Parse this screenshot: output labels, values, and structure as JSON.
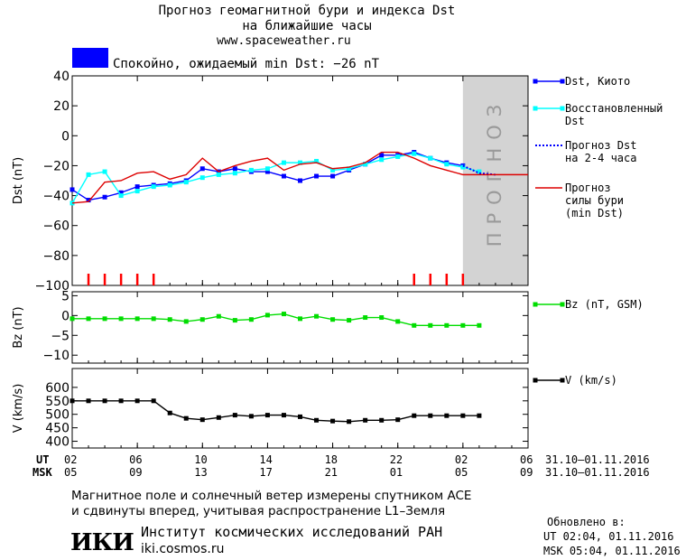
{
  "header": {
    "title_line1": "Прогноз геомагнитной бури и индекса Dst",
    "title_line2": "на ближайшие часы",
    "website": "www.spaceweather.ru",
    "status_text": "Спокойно, ожидаемый min Dst: −26 nT",
    "status_color": "#0000ff"
  },
  "time_axis": {
    "ut_label": "UT",
    "msk_label": "MSK",
    "ut_ticks": [
      "02",
      "06",
      "10",
      "14",
      "18",
      "22",
      "02",
      "06"
    ],
    "msk_ticks": [
      "05",
      "09",
      "13",
      "17",
      "21",
      "01",
      "05",
      "09"
    ],
    "ut_range": "31.10–01.11.2016",
    "msk_range": "31.10–01.11.2016"
  },
  "footer": {
    "note_line1": "Магнитное поле и солнечный ветер измерены спутником ACE",
    "note_line2": "и сдвинуты вперед, учитывая распространение L1–Земля",
    "updated_label": "Обновлено в:",
    "updated_ut": "UT  02:04, 01.11.2016",
    "updated_msk": "MSK 05:04, 01.11.2016",
    "org_logo": "ИКИ",
    "org_name": "Институт космических исследований РАН",
    "org_site": "iki.cosmos.ru"
  },
  "chart_data": [
    {
      "type": "line",
      "panel": "dst",
      "ylabel": "Dst (nT)",
      "xlim": [
        2,
        30
      ],
      "ylim": [
        -100,
        40
      ],
      "yticks": [
        40,
        20,
        0,
        -20,
        -40,
        -60,
        -80,
        -100
      ],
      "forecast_region": {
        "x_start": 26,
        "x_end": 30,
        "label": "ПРОГНОЗ",
        "color": "#d3d3d3"
      },
      "series": [
        {
          "name": "Dst, Киото",
          "color": "#0000ff",
          "marker": "square",
          "x": [
            2,
            3,
            4,
            5,
            6,
            7,
            8,
            9,
            10,
            11,
            12,
            13,
            14,
            15,
            16,
            17,
            18,
            19,
            20,
            21,
            22,
            23,
            24,
            25,
            26
          ],
          "y": [
            -36,
            -43,
            -41,
            -38,
            -34,
            -33,
            -32,
            -30,
            -22,
            -24,
            -22,
            -24,
            -24,
            -27,
            -30,
            -27,
            -27,
            -23,
            -19,
            -13,
            -13,
            -11,
            -15,
            -18,
            -20
          ]
        },
        {
          "name": "Восстановленный Dst",
          "color": "#00ffff",
          "marker": "square",
          "x": [
            2,
            3,
            4,
            5,
            6,
            7,
            8,
            9,
            10,
            11,
            12,
            13,
            14,
            15,
            16,
            17,
            18,
            19,
            20,
            21,
            22,
            23,
            24,
            25,
            26,
            27
          ],
          "y": [
            -45,
            -26,
            -24,
            -40,
            -37,
            -34,
            -33,
            -31,
            -28,
            -26,
            -25,
            -23,
            -22,
            -18,
            -18,
            -17,
            -23,
            -22,
            -19,
            -16,
            -14,
            -12,
            -15,
            -19,
            -21,
            -24
          ]
        },
        {
          "name": "Прогноз Dst на 2-4 часа",
          "color": "#0000ff",
          "line_style": "dotted",
          "x": [
            26,
            27,
            28
          ],
          "y": [
            -20,
            -25,
            -26
          ]
        },
        {
          "name": "Прогноз силы бури (min Dst)",
          "color": "#dd0000",
          "x": [
            2,
            3,
            4,
            5,
            6,
            7,
            8,
            9,
            10,
            11,
            12,
            13,
            14,
            15,
            16,
            17,
            18,
            19,
            20,
            21,
            22,
            23,
            24,
            25,
            26,
            27,
            28,
            29,
            30
          ],
          "y": [
            -45,
            -44,
            -31,
            -30,
            -25,
            -24,
            -29,
            -26,
            -15,
            -24,
            -20,
            -17,
            -15,
            -23,
            -19,
            -18,
            -22,
            -21,
            -18,
            -11,
            -11,
            -15,
            -20,
            -23,
            -26,
            -26,
            -26,
            -26,
            -26
          ]
        }
      ],
      "storm_markers": {
        "color": "#ff0000",
        "x": [
          3,
          4,
          5,
          6,
          7,
          23,
          24,
          25,
          26
        ]
      }
    },
    {
      "type": "line",
      "panel": "bz",
      "ylabel": "Bz (nT)",
      "xlim": [
        2,
        30
      ],
      "ylim": [
        -12,
        6
      ],
      "yticks": [
        5,
        0,
        -5,
        -10
      ],
      "series": [
        {
          "name": "Bz (nT, GSM)",
          "color": "#00dd00",
          "marker": "square",
          "x": [
            2,
            3,
            4,
            5,
            6,
            7,
            8,
            9,
            10,
            11,
            12,
            13,
            14,
            15,
            16,
            17,
            18,
            19,
            20,
            21,
            22,
            23,
            24,
            25,
            26,
            27
          ],
          "y": [
            -0.8,
            -0.8,
            -0.8,
            -0.8,
            -0.8,
            -0.8,
            -1.0,
            -1.5,
            -1.0,
            -0.2,
            -1.2,
            -1.0,
            0.1,
            0.4,
            -0.8,
            -0.2,
            -1.0,
            -1.2,
            -0.5,
            -0.5,
            -1.5,
            -2.5,
            -2.5,
            -2.5,
            -2.5,
            -2.5
          ]
        }
      ]
    },
    {
      "type": "line",
      "panel": "v",
      "ylabel": "V (km/s)",
      "xlim": [
        2,
        30
      ],
      "ylim": [
        375,
        670
      ],
      "yticks": [
        600,
        550,
        500,
        450,
        400
      ],
      "series": [
        {
          "name": "V (km/s)",
          "color": "#000000",
          "marker": "square",
          "x": [
            2,
            3,
            4,
            5,
            6,
            7,
            8,
            9,
            10,
            11,
            12,
            13,
            14,
            15,
            16,
            17,
            18,
            19,
            20,
            21,
            22,
            23,
            24,
            25,
            26,
            27
          ],
          "y": [
            550,
            550,
            550,
            550,
            550,
            550,
            505,
            485,
            480,
            488,
            497,
            493,
            497,
            497,
            491,
            478,
            475,
            473,
            478,
            478,
            480,
            495,
            495,
            495,
            495,
            495
          ]
        }
      ]
    }
  ]
}
